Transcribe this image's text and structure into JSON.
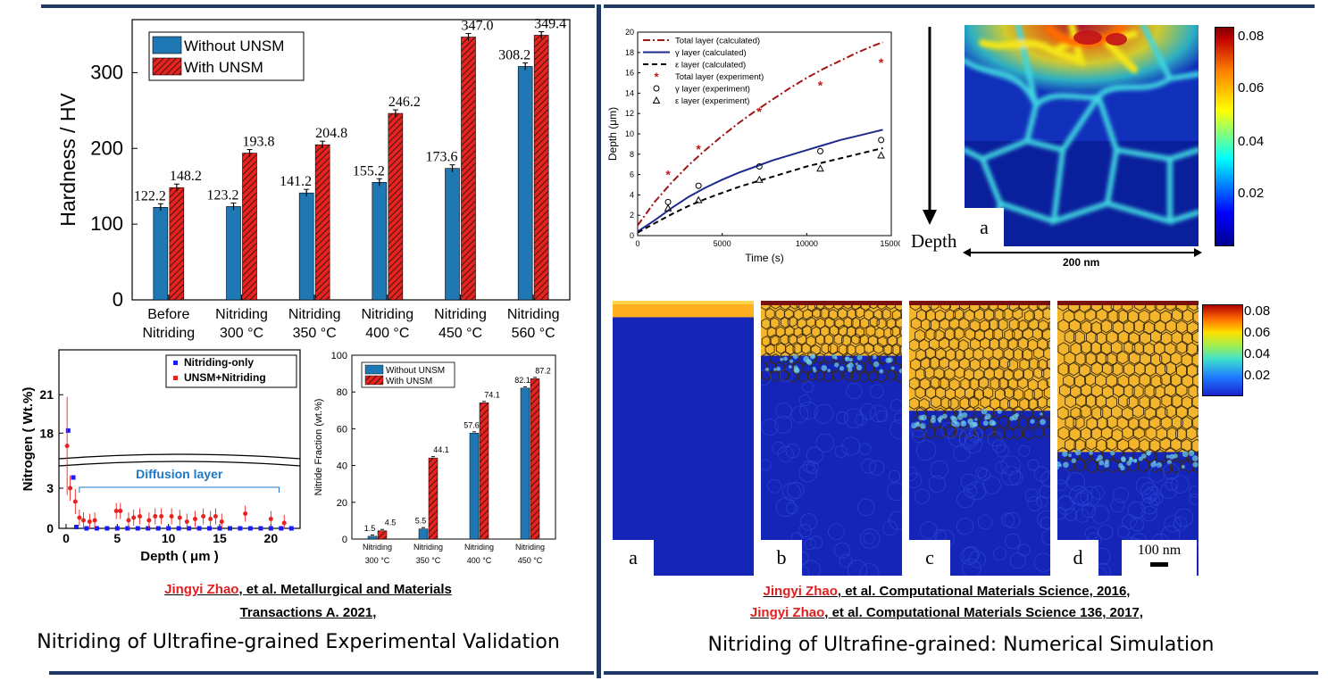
{
  "chart_data": [
    {
      "type": "bar",
      "ylabel": "Hardness / HV",
      "ylim": [
        0,
        370
      ],
      "yticks": [
        0,
        100,
        200,
        300
      ],
      "categories": [
        [
          "Before",
          "Nitriding"
        ],
        [
          "Nitriding",
          "300 °C"
        ],
        [
          "Nitriding",
          "350 °C"
        ],
        [
          "Nitriding",
          "400 °C"
        ],
        [
          "Nitriding",
          "450 °C"
        ],
        [
          "Nitriding",
          "560 °C"
        ]
      ],
      "series": [
        {
          "name": "Without UNSM",
          "values": [
            122.2,
            123.2,
            141.2,
            155.2,
            173.6,
            308.2
          ],
          "color": "#1f77b4"
        },
        {
          "name": "With UNSM",
          "values": [
            148.2,
            193.8,
            204.8,
            246.2,
            347.0,
            349.4
          ],
          "color": "#e8231f"
        }
      ],
      "value_labels": [
        [
          "122.2",
          "123.2",
          "141.2",
          "155.2",
          "173.6",
          "308.2"
        ],
        [
          "148.2",
          "193.8",
          "204.8",
          "246.2",
          "347.0",
          "349.4"
        ]
      ],
      "legend": "top-left"
    },
    {
      "type": "scatter",
      "xlabel": "Depth ( μm )",
      "ylabel": "Nitrogen ( Wt.%)",
      "xticks": [
        0,
        5,
        10,
        15,
        20
      ],
      "yticks_upper": [
        18,
        21
      ],
      "yticks_lower": [
        0,
        3
      ],
      "annotation": "Diffusion layer",
      "series": [
        {
          "name": "Nitriding-only",
          "color": "#1a1aff",
          "x": [
            0.2,
            0.7,
            1.0,
            2,
            3,
            4,
            5,
            6,
            7,
            8,
            9,
            10,
            11,
            12,
            13,
            14,
            15,
            16,
            17,
            18,
            19,
            20,
            21,
            22
          ],
          "y": [
            18.2,
            3.8,
            0.1,
            0,
            0,
            0,
            0,
            0,
            0,
            0,
            0,
            0,
            0,
            0,
            0,
            0,
            0,
            0,
            0,
            0,
            0,
            0,
            0,
            0
          ]
        },
        {
          "name": "UNSM+Nitriding",
          "color": "#e8231f",
          "x": [
            0.1,
            0.4,
            0.9,
            1.3,
            1.7,
            2.3,
            2.8,
            4.9,
            5.3,
            6.1,
            6.6,
            7.2,
            8.1,
            8.7,
            9.3,
            10.3,
            11.1,
            11.8,
            12.6,
            13.4,
            14.1,
            14.6,
            15.2,
            17.5,
            20.0,
            21.3
          ],
          "y": [
            17.0,
            3.0,
            2.0,
            0.8,
            0.6,
            0.5,
            0.6,
            1.3,
            1.3,
            0.6,
            0.8,
            0.9,
            0.6,
            0.9,
            0.9,
            0.9,
            0.8,
            0.5,
            0.7,
            0.9,
            0.7,
            0.9,
            0.5,
            1.1,
            0.7,
            0.4
          ]
        }
      ],
      "legend": "top-right"
    },
    {
      "type": "bar",
      "ylabel": "Nitride Fraction (wt.%)",
      "ylim": [
        0,
        100
      ],
      "yticks": [
        0,
        20,
        40,
        60,
        80,
        100
      ],
      "categories": [
        [
          "Nitriding",
          "300 °C"
        ],
        [
          "Nitriding",
          "350 °C"
        ],
        [
          "Nitriding",
          "400 °C"
        ],
        [
          "Nitriding",
          "450 °C"
        ]
      ],
      "series": [
        {
          "name": "Without UNSM",
          "values": [
            1.5,
            5.5,
            57.6,
            82.1
          ],
          "color": "#1f77b4"
        },
        {
          "name": "With UNSM",
          "values": [
            4.5,
            44.1,
            74.1,
            87.2
          ],
          "color": "#e8231f"
        }
      ],
      "value_labels": [
        [
          "1.5",
          "5.5",
          "57.6",
          "82.1"
        ],
        [
          "4.5",
          "44.1",
          "74.1",
          "87.2"
        ]
      ],
      "legend": "top-left"
    },
    {
      "type": "line",
      "xlabel": "Time (s)",
      "ylabel": "Depth (μm)",
      "xlim": [
        0,
        15000
      ],
      "ylim": [
        0,
        20
      ],
      "xticks": [
        0,
        5000,
        10000,
        15000
      ],
      "yticks": [
        0,
        2,
        4,
        6,
        8,
        10,
        12,
        14,
        16,
        18,
        20
      ],
      "series": [
        {
          "name": "Total layer (calculated)",
          "style": "dash-dot",
          "color": "#a01515",
          "x": [
            0,
            1000,
            2000,
            3000,
            4000,
            5000,
            6000,
            7000,
            8000,
            9000,
            10000,
            11000,
            12000,
            13000,
            14000,
            14500
          ],
          "y": [
            1.0,
            3.3,
            5.2,
            6.9,
            8.4,
            9.8,
            11.1,
            12.3,
            13.4,
            14.5,
            15.5,
            16.4,
            17.2,
            18.0,
            18.7,
            19.0
          ]
        },
        {
          "name": "γ layer (calculated)",
          "style": "solid",
          "color": "#1f2a8c",
          "x": [
            0,
            1000,
            2000,
            3000,
            4000,
            5000,
            6000,
            7000,
            8000,
            9000,
            10000,
            11000,
            12000,
            13000,
            14000,
            14500
          ],
          "y": [
            0.4,
            1.5,
            2.7,
            3.8,
            4.7,
            5.5,
            6.2,
            6.8,
            7.4,
            7.9,
            8.4,
            8.9,
            9.4,
            9.8,
            10.2,
            10.4
          ]
        },
        {
          "name": "ε layer (calculated)",
          "style": "dashed",
          "color": "#000000",
          "x": [
            0,
            1000,
            2000,
            3000,
            4000,
            5000,
            6000,
            7000,
            8000,
            9000,
            10000,
            11000,
            12000,
            13000,
            14000,
            14500
          ],
          "y": [
            0.3,
            1.2,
            2.1,
            2.9,
            3.6,
            4.2,
            4.8,
            5.3,
            5.8,
            6.3,
            6.8,
            7.2,
            7.6,
            8.0,
            8.4,
            8.6
          ]
        },
        {
          "name": "Total layer (experiment)",
          "marker": "*",
          "color": "#c01818",
          "x": [
            1800,
            3600,
            7200,
            10800,
            14400
          ],
          "y": [
            6.0,
            8.5,
            12.2,
            14.8,
            17.0
          ]
        },
        {
          "name": "γ layer (experiment)",
          "marker": "o",
          "color": "#000000",
          "x": [
            1800,
            3600,
            7200,
            10800,
            14400
          ],
          "y": [
            3.3,
            4.9,
            6.8,
            8.3,
            9.4
          ]
        },
        {
          "name": "ε layer (experiment)",
          "marker": "triangle",
          "color": "#000000",
          "x": [
            1800,
            3600,
            7200,
            10800,
            14400
          ],
          "y": [
            2.7,
            3.5,
            5.5,
            6.6,
            7.9
          ]
        }
      ],
      "legend": "top-left"
    }
  ],
  "simulation": {
    "depth_label": "Depth",
    "panel_a_label": "a",
    "scale_label": "200 nm",
    "colorbar_ticks": [
      "0.08",
      "0.06",
      "0.04",
      "0.02"
    ],
    "panel_labels": [
      "a",
      "b",
      "c",
      "d"
    ],
    "scale_bar_label": "100 nm",
    "colorbar2_ticks": [
      "0.08",
      "0.06",
      "0.04",
      "0.02"
    ]
  },
  "citations": {
    "left_author": "Jingyi Zhao",
    "left_line1_rest": ", et al. Metallurgical and Materials",
    "left_line2": "Transactions A. 2021,",
    "right_author1": "Jingyi Zhao",
    "right_line1_rest": ", et al. Computational Materials Science, 2016,",
    "right_author2": "Jingyi Zhao",
    "right_line2_rest": ", et al. Computational Materials Science 136, 2017,"
  },
  "captions": {
    "left": "Nitriding of Ultrafine-grained Experimental Validation",
    "right": "Nitriding of Ultrafine-grained: Numerical Simulation"
  },
  "colors": {
    "rule": "#1f3864",
    "blue_bar": "#1f77b4",
    "red_bar": "#e8231f",
    "citation_author": "#e02020"
  }
}
